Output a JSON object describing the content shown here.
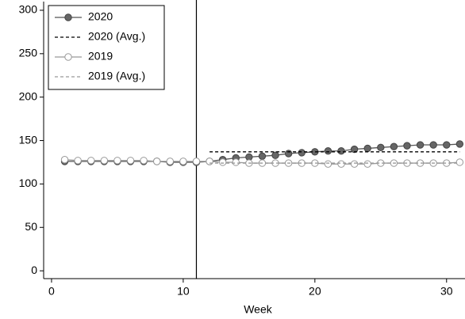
{
  "chart_data": {
    "type": "line",
    "x_label": "Week",
    "x": [
      1,
      2,
      3,
      4,
      5,
      6,
      7,
      8,
      9,
      10,
      11,
      12,
      13,
      14,
      15,
      16,
      17,
      18,
      19,
      20,
      21,
      22,
      23,
      24,
      25,
      26,
      27,
      28,
      29,
      30,
      31
    ],
    "series": [
      {
        "name": "2020",
        "color": "#555555",
        "marker": "filled",
        "dashed": false,
        "values": [
          126,
          126,
          126,
          126,
          126,
          126,
          126,
          126,
          125,
          125,
          125,
          126,
          128,
          130,
          131,
          132,
          133,
          135,
          136,
          137,
          138,
          138,
          140,
          141,
          142,
          143,
          144,
          145,
          145,
          145,
          146
        ]
      },
      {
        "name": "2020 (Avg.)",
        "color": "#000000",
        "marker": "none",
        "dashed": true,
        "values": [
          null,
          null,
          null,
          null,
          null,
          null,
          null,
          null,
          null,
          null,
          null,
          137,
          137,
          137,
          137,
          137,
          137,
          137,
          137,
          137,
          137,
          137,
          137,
          137,
          137,
          137,
          137,
          137,
          137,
          137,
          137
        ]
      },
      {
        "name": "2019",
        "color": "#999999",
        "marker": "hollow",
        "dashed": false,
        "values": [
          128,
          127,
          127,
          127,
          127,
          127,
          127,
          126,
          126,
          126,
          126,
          126,
          125,
          125,
          124,
          124,
          124,
          124,
          124,
          124,
          123,
          123,
          123,
          123,
          124,
          124,
          124,
          124,
          124,
          124,
          125
        ]
      },
      {
        "name": "2019 (Avg.)",
        "color": "#999999",
        "marker": "none",
        "dashed": true,
        "values": [
          null,
          null,
          null,
          null,
          null,
          null,
          null,
          null,
          null,
          null,
          null,
          124,
          124,
          124,
          124,
          124,
          124,
          124,
          124,
          124,
          124,
          124,
          124,
          124,
          124,
          124,
          124,
          124,
          124,
          124,
          124
        ]
      }
    ],
    "vline": 11,
    "xlim": [
      -0.6,
      31.4
    ],
    "ylim": [
      -9,
      310
    ],
    "xticks": [
      0,
      10,
      20,
      30
    ],
    "yticks": [
      0,
      50,
      100,
      150,
      200,
      250,
      300
    ],
    "legend": "upper left"
  }
}
